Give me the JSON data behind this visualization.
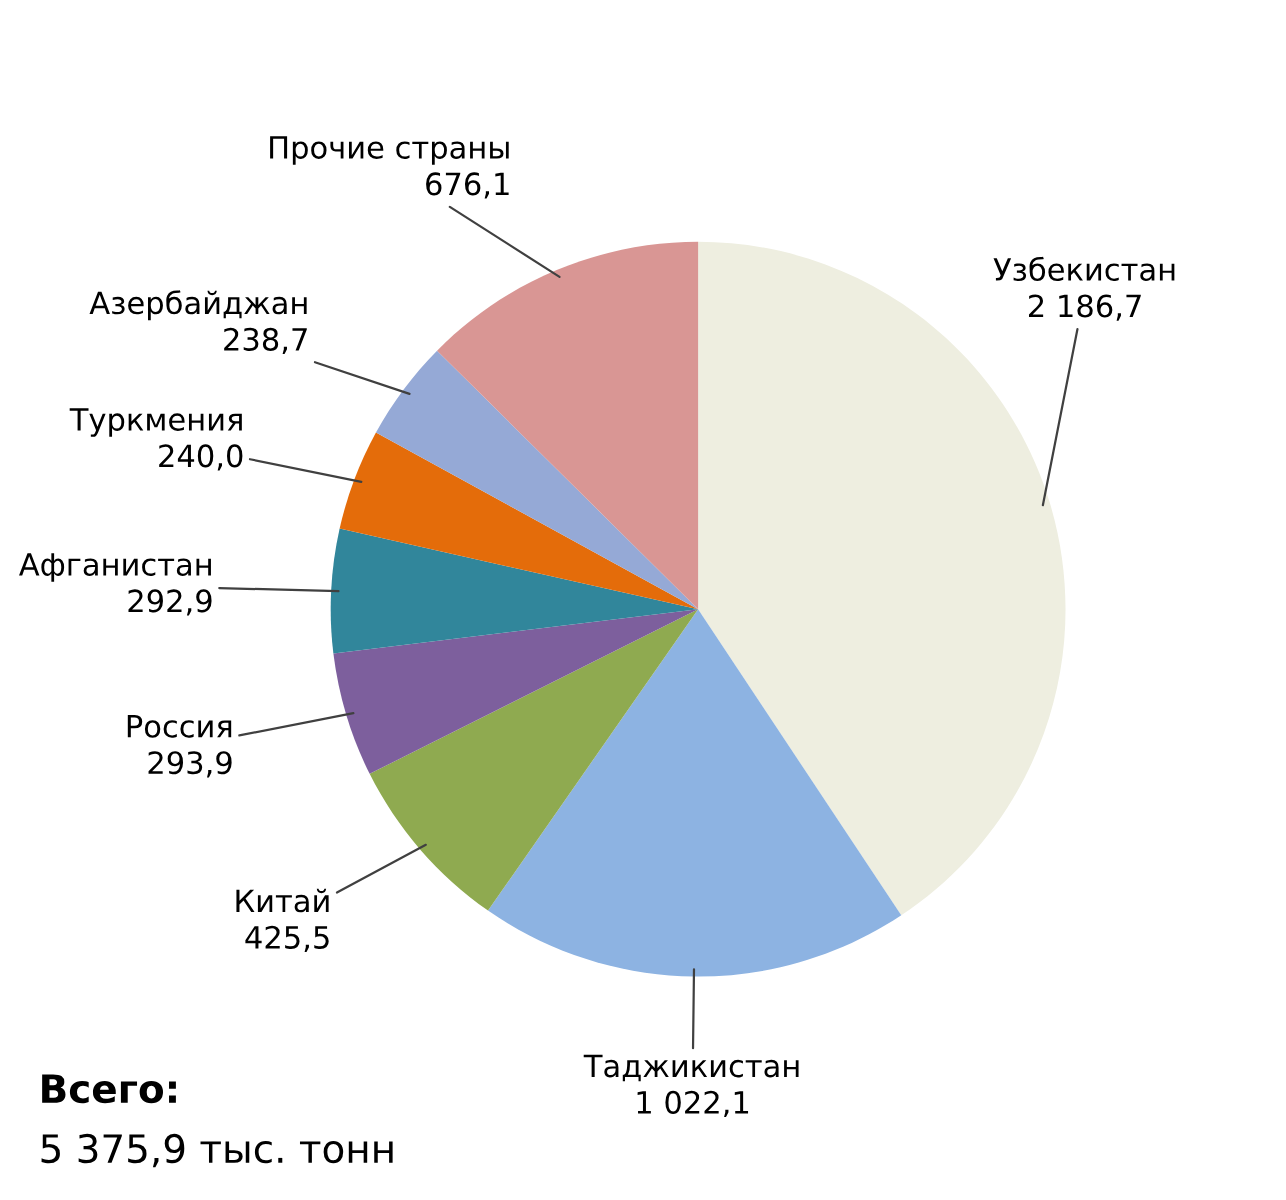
{
  "chart_data": {
    "type": "pie",
    "categories": [
      "Узбекистан",
      "Таджикистан",
      "Китай",
      "Россия",
      "Афганистан",
      "Туркмения",
      "Азербайджан",
      "Прочие страны"
    ],
    "values": [
      2186.7,
      1022.1,
      425.5,
      293.9,
      292.9,
      240.0,
      238.7,
      676.1
    ],
    "value_labels": [
      "2 186,7",
      "1 022,1",
      "425,5",
      "293,9",
      "292,9",
      "240,0",
      "238,7",
      "676,1"
    ],
    "colors": [
      "#eeeee0",
      "#8db3e2",
      "#8faa50",
      "#7d5f9d",
      "#31869b",
      "#e46c0a",
      "#95a9d6",
      "#d99694"
    ],
    "annotations": [
      "Всего:",
      "5 375,9 тыс. тонн"
    ],
    "legend": false
  }
}
